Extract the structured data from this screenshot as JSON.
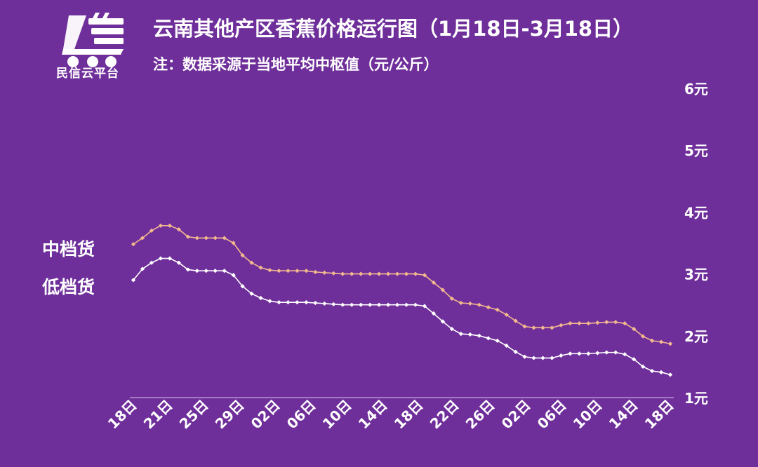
{
  "header": {
    "logo_text": "民信云平台",
    "title": "云南其他产区香蕉价格运行图（1月18日-3月18日）",
    "subtitle": "注：数据采源于当地平均中枢值（元/公斤）"
  },
  "colors": {
    "background": "#6f2f9a",
    "mid_series": "#f2b98e",
    "low_series": "#ffffff",
    "axis": "#d8c8e8"
  },
  "chart_data": {
    "type": "line",
    "x_tick_labels": [
      "18日",
      "21日",
      "25日",
      "29日",
      "02日",
      "06日",
      "10日",
      "14日",
      "18日",
      "22日",
      "26日",
      "02日",
      "06日",
      "10日",
      "14日",
      "18日"
    ],
    "y_tick_labels": [
      "1元",
      "2元",
      "3元",
      "4元",
      "5元",
      "6元"
    ],
    "ylim": [
      1,
      6
    ],
    "legend_position": "left",
    "series": [
      {
        "name": "中档货",
        "values": [
          3.48,
          3.58,
          3.7,
          3.78,
          3.78,
          3.72,
          3.6,
          3.58,
          3.58,
          3.58,
          3.58,
          3.5,
          3.3,
          3.18,
          3.1,
          3.06,
          3.05,
          3.05,
          3.05,
          3.05,
          3.03,
          3.02,
          3.01,
          3.0,
          3.0,
          3.0,
          3.0,
          3.0,
          3.0,
          3.0,
          3.0,
          3.0,
          2.98,
          2.86,
          2.74,
          2.6,
          2.53,
          2.52,
          2.5,
          2.46,
          2.42,
          2.34,
          2.24,
          2.15,
          2.13,
          2.13,
          2.13,
          2.17,
          2.2,
          2.2,
          2.2,
          2.21,
          2.22,
          2.22,
          2.2,
          2.11,
          1.99,
          1.92,
          1.9,
          1.87
        ]
      },
      {
        "name": "低档货",
        "values": [
          2.9,
          3.08,
          3.18,
          3.25,
          3.25,
          3.18,
          3.07,
          3.05,
          3.05,
          3.05,
          3.05,
          2.98,
          2.8,
          2.68,
          2.61,
          2.56,
          2.54,
          2.54,
          2.54,
          2.54,
          2.53,
          2.52,
          2.51,
          2.5,
          2.5,
          2.5,
          2.5,
          2.5,
          2.5,
          2.5,
          2.5,
          2.5,
          2.48,
          2.36,
          2.23,
          2.11,
          2.03,
          2.02,
          2.0,
          1.96,
          1.92,
          1.84,
          1.74,
          1.66,
          1.64,
          1.64,
          1.64,
          1.68,
          1.71,
          1.71,
          1.71,
          1.72,
          1.73,
          1.73,
          1.7,
          1.62,
          1.5,
          1.43,
          1.41,
          1.37
        ]
      }
    ]
  }
}
